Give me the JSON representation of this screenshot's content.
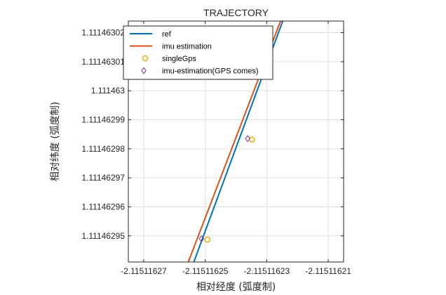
{
  "chart_data": {
    "type": "line",
    "title": "TRAJECTORY",
    "xlabel": "相对经度 (弧度制)",
    "ylabel": "相对纬度 (弧度制)",
    "xlim": [
      -2.115116275,
      -2.115116205
    ],
    "ylim": [
      1.111462941,
      1.111463024
    ],
    "xticks": [
      -2.11511627,
      -2.11511625,
      -2.11511623,
      -2.11511621
    ],
    "xtick_labels": [
      "-2.11511627",
      "-2.11511625",
      "-2.11511623",
      "-2.11511621"
    ],
    "yticks": [
      1.11146295,
      1.11146296,
      1.11146297,
      1.11146298,
      1.11146299,
      1.111463,
      1.11146301,
      1.11146302
    ],
    "ytick_labels": [
      "1.11146295",
      "1.11146296",
      "1.11146297",
      "1.11146298",
      "1.11146299",
      "1.111463",
      "1.11146301",
      "1.11146302"
    ],
    "grid": true,
    "legend_position": "top-left",
    "series": [
      {
        "name": "ref",
        "kind": "line",
        "color": "#0072BD",
        "x": [
          -2.1151162537,
          -2.1151162248
        ],
        "y": [
          1.111462941,
          1.111463024
        ]
      },
      {
        "name": "imu estimation",
        "kind": "line",
        "color": "#D95319",
        "x": [
          -2.1151162555,
          -2.1151162255
        ],
        "y": [
          1.111462941,
          1.111463024
        ]
      },
      {
        "name": "singleGps",
        "kind": "marker",
        "marker": "circle",
        "color": "#EDB120",
        "x": [
          -2.1151162493,
          -2.1151162348
        ],
        "y": [
          1.1114629487,
          1.1114629832
        ]
      },
      {
        "name": "imu-estimation(GPS comes)",
        "kind": "marker",
        "marker": "diamond",
        "color": "#7E2F8E",
        "x": [
          -2.1151162512,
          -2.1151162362
        ],
        "y": [
          1.111462949,
          1.1114629835
        ]
      }
    ]
  }
}
